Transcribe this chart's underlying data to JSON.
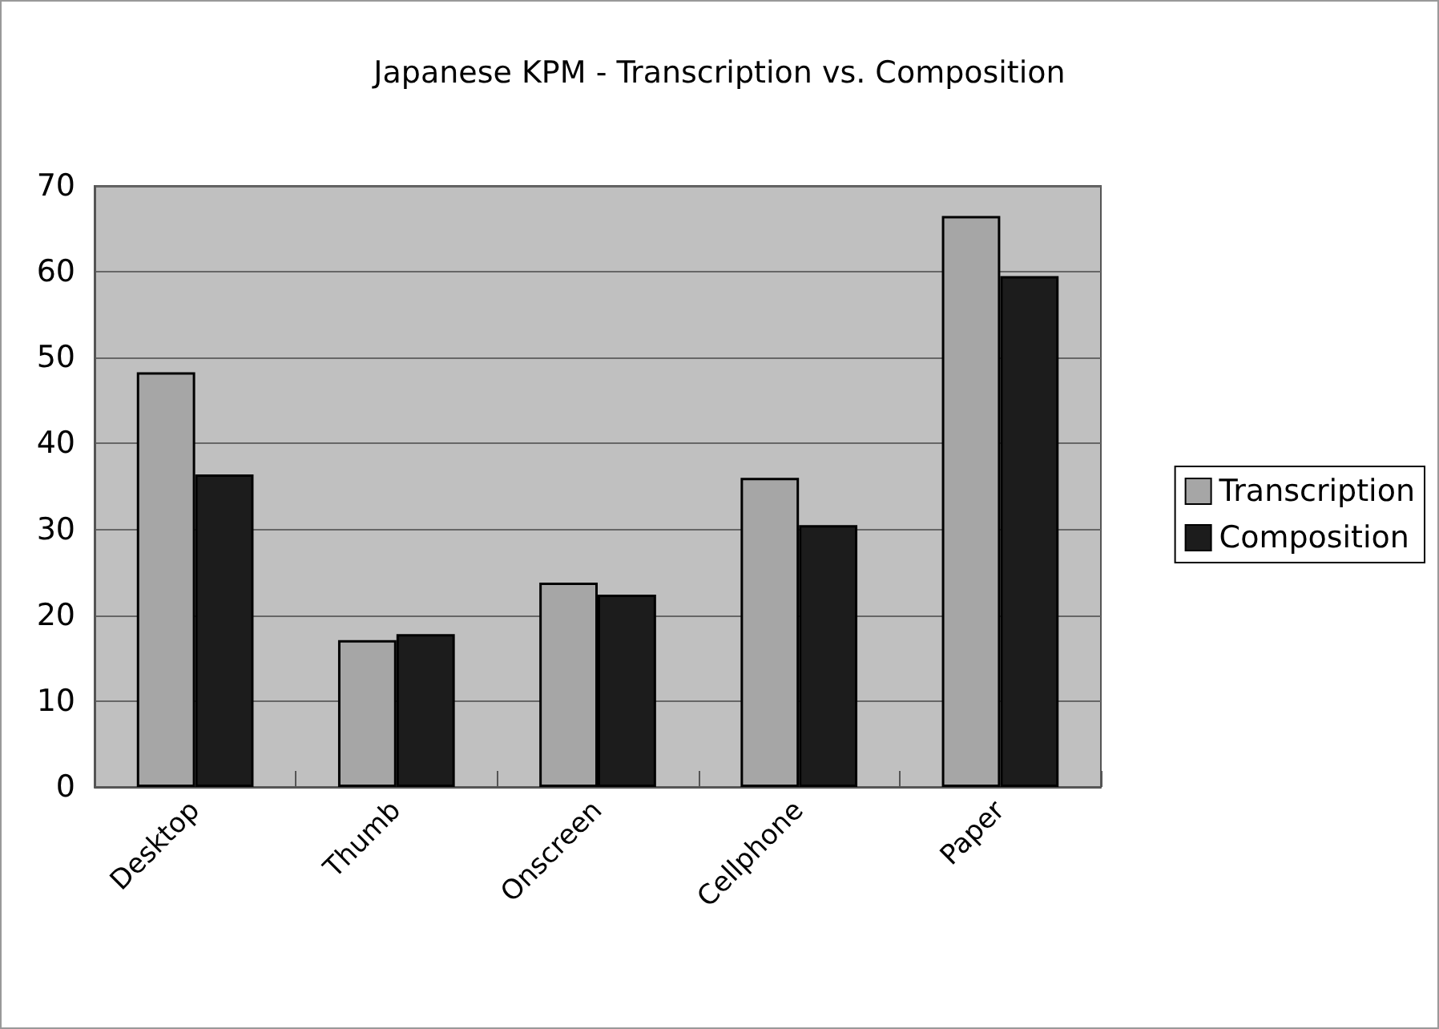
{
  "chart_data": {
    "type": "bar",
    "title": "Japanese KPM - Transcription vs. Composition",
    "categories": [
      "Desktop",
      "Thumb",
      "Onscreen",
      "Cellphone",
      "Paper"
    ],
    "series": [
      {
        "name": "Transcription",
        "color": "#a6a6a6",
        "values": [
          48.3,
          17.1,
          23.8,
          36.0,
          66.5
        ]
      },
      {
        "name": "Composition",
        "color": "#1c1c1c",
        "values": [
          36.4,
          17.8,
          22.4,
          30.5,
          59.5
        ]
      }
    ],
    "ylim": [
      0,
      70
    ],
    "yticks": [
      0,
      10,
      20,
      30,
      40,
      50,
      60,
      70
    ],
    "grid": "y",
    "legend": "right"
  }
}
